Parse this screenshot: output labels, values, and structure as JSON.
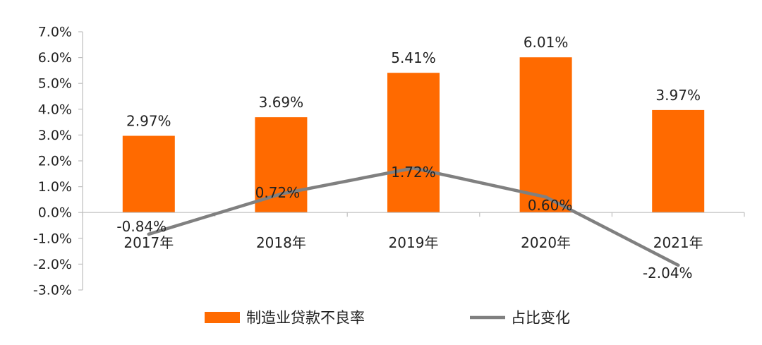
{
  "chart_data": {
    "type": "bar",
    "categories": [
      "2017年",
      "2018年",
      "2019年",
      "2020年",
      "2021年"
    ],
    "series": [
      {
        "name": "制造业贷款不良率",
        "kind": "bar",
        "color": "#FF6A00",
        "values": [
          2.97,
          3.69,
          5.41,
          6.01,
          3.97
        ],
        "labels": [
          "2.97%",
          "3.69%",
          "5.41%",
          "6.01%",
          "3.97%"
        ]
      },
      {
        "name": "占比变化",
        "kind": "line",
        "color": "#808080",
        "values": [
          -0.84,
          0.72,
          1.72,
          0.6,
          -2.04
        ],
        "labels": [
          "-0.84%",
          "0.72%",
          "1.72%",
          "0.60%",
          "-2.04%"
        ]
      }
    ],
    "ylim": [
      -3.0,
      7.0
    ],
    "ytick_step": 1.0,
    "ytick_labels": [
      "7.0%",
      "6.0%",
      "5.0%",
      "4.0%",
      "3.0%",
      "2.0%",
      "1.0%",
      "0.0%",
      "-1.0%",
      "-2.0%",
      "-3.0%"
    ],
    "grid": false,
    "legend_position": "bottom-center"
  }
}
